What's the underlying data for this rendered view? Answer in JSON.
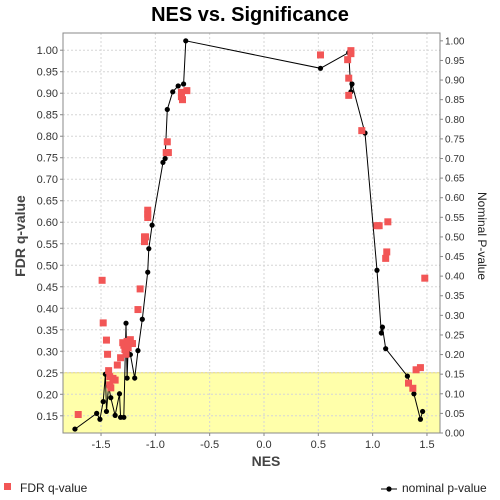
{
  "chart_data": {
    "type": "scatter",
    "title": "NES vs. Significance",
    "xlabel": "NES",
    "ylabel": "FDR q-value",
    "y2label": "Nominal P-value",
    "xlim": [
      -1.85,
      1.62
    ],
    "ylim": [
      0.11,
      1.04
    ],
    "y2lim": [
      0.0,
      1.02
    ],
    "xticks": [
      "-1.5",
      "-1.0",
      "-0.5",
      "0.0",
      "0.5",
      "1.0",
      "1.5"
    ],
    "yticks": [
      "0.15",
      "0.20",
      "0.25",
      "0.30",
      "0.35",
      "0.40",
      "0.45",
      "0.50",
      "0.55",
      "0.60",
      "0.65",
      "0.70",
      "0.75",
      "0.80",
      "0.85",
      "0.90",
      "0.95",
      "1.00"
    ],
    "y2ticks": [
      "0.00",
      "0.05",
      "0.10",
      "0.15",
      "0.20",
      "0.25",
      "0.30",
      "0.35",
      "0.40",
      "0.45",
      "0.50",
      "0.55",
      "0.60",
      "0.65",
      "0.70",
      "0.75",
      "0.80",
      "0.85",
      "0.90",
      "0.95",
      "1.00"
    ],
    "highlight": {
      "y_from": 0.11,
      "y_to": 0.25,
      "color": "#ffffaa"
    },
    "grid": true,
    "legend": "bottom",
    "series": [
      {
        "name": "FDR q-value",
        "kind": "markers",
        "axis": "left",
        "color": "#f25656",
        "points": [
          [
            -1.71,
            0.153
          ],
          [
            -1.49,
            0.465
          ],
          [
            -1.48,
            0.366
          ],
          [
            -1.45,
            0.326
          ],
          [
            -1.44,
            0.293
          ],
          [
            -1.43,
            0.255
          ],
          [
            -1.42,
            0.241
          ],
          [
            -1.42,
            0.222
          ],
          [
            -1.41,
            0.215
          ],
          [
            -1.39,
            0.237
          ],
          [
            -1.37,
            0.233
          ],
          [
            -1.35,
            0.268
          ],
          [
            -1.32,
            0.285
          ],
          [
            -1.3,
            0.32
          ],
          [
            -1.29,
            0.314
          ],
          [
            -1.28,
            0.304
          ],
          [
            -1.27,
            0.293
          ],
          [
            -1.26,
            0.323
          ],
          [
            -1.25,
            0.308
          ],
          [
            -1.23,
            0.327
          ],
          [
            -1.21,
            0.318
          ],
          [
            -1.16,
            0.397
          ],
          [
            -1.14,
            0.445
          ],
          [
            -1.1,
            0.555
          ],
          [
            -1.1,
            0.566
          ],
          [
            -1.09,
            0.566
          ],
          [
            -1.07,
            0.619
          ],
          [
            -1.07,
            0.611
          ],
          [
            -1.07,
            0.628
          ],
          [
            -0.9,
            0.762
          ],
          [
            -0.89,
            0.787
          ],
          [
            -0.88,
            0.762
          ],
          [
            -0.76,
            0.902
          ],
          [
            -0.76,
            0.892
          ],
          [
            -0.75,
            0.885
          ],
          [
            -0.71,
            0.906
          ],
          [
            0.52,
            0.989
          ],
          [
            0.77,
            0.978
          ],
          [
            0.8,
            0.992
          ],
          [
            0.8,
            0.999
          ],
          [
            0.78,
            0.935
          ],
          [
            0.78,
            0.895
          ],
          [
            0.9,
            0.813
          ],
          [
            1.04,
            0.592
          ],
          [
            1.06,
            0.592
          ],
          [
            1.12,
            0.516
          ],
          [
            1.13,
            0.531
          ],
          [
            1.14,
            0.601
          ],
          [
            1.33,
            0.226
          ],
          [
            1.37,
            0.214
          ],
          [
            1.4,
            0.257
          ],
          [
            1.44,
            0.262
          ],
          [
            1.48,
            0.47
          ]
        ]
      },
      {
        "name": "nominal p-value",
        "kind": "line",
        "axis": "right",
        "color": "#000000",
        "points": [
          [
            -1.74,
            0.01
          ],
          [
            -1.54,
            0.05
          ],
          [
            -1.51,
            0.035
          ],
          [
            -1.48,
            0.08
          ],
          [
            -1.46,
            0.15
          ],
          [
            -1.45,
            0.055
          ],
          [
            -1.43,
            0.12
          ],
          [
            -1.41,
            0.09
          ],
          [
            -1.37,
            0.045
          ],
          [
            -1.33,
            0.1
          ],
          [
            -1.32,
            0.04
          ],
          [
            -1.29,
            0.04
          ],
          [
            -1.27,
            0.28
          ],
          [
            -1.26,
            0.14
          ],
          [
            -1.25,
            0.22
          ],
          [
            -1.23,
            0.2
          ],
          [
            -1.19,
            0.14
          ],
          [
            -1.16,
            0.21
          ],
          [
            -1.12,
            0.29
          ],
          [
            -1.07,
            0.41
          ],
          [
            -1.06,
            0.47
          ],
          [
            -1.03,
            0.53
          ],
          [
            -0.93,
            0.69
          ],
          [
            -0.91,
            0.7
          ],
          [
            -0.89,
            0.825
          ],
          [
            -0.84,
            0.87
          ],
          [
            -0.79,
            0.885
          ],
          [
            -0.74,
            0.89
          ],
          [
            -0.72,
            1.0
          ],
          [
            0.52,
            0.93
          ],
          [
            0.78,
            0.97
          ],
          [
            0.8,
            0.87
          ],
          [
            0.81,
            0.89
          ],
          [
            0.93,
            0.765
          ],
          [
            1.04,
            0.415
          ],
          [
            1.08,
            0.255
          ],
          [
            1.09,
            0.27
          ],
          [
            1.12,
            0.215
          ],
          [
            1.32,
            0.145
          ],
          [
            1.38,
            0.1
          ],
          [
            1.44,
            0.035
          ],
          [
            1.46,
            0.055
          ]
        ]
      }
    ]
  }
}
